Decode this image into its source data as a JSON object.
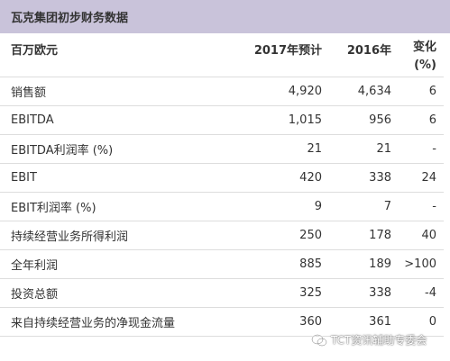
{
  "title": "瓦克集团初步财务数据",
  "table": {
    "headers": [
      "百万欧元",
      "2017年预计",
      "2016年",
      "变化",
      "(%)"
    ],
    "rows": [
      {
        "label": "销售额",
        "v2017": "4,920",
        "v2016": "4,634",
        "change": "6"
      },
      {
        "label": "EBITDA",
        "v2017": "1,015",
        "v2016": "956",
        "change": "6"
      },
      {
        "label": "EBITDA利润率 (%)",
        "v2017": "21",
        "v2016": "21",
        "change": "-"
      },
      {
        "label": "EBIT",
        "v2017": "420",
        "v2016": "338",
        "change": "24"
      },
      {
        "label": "EBIT利润率 (%)",
        "v2017": "9",
        "v2016": "7",
        "change": "-"
      },
      {
        "label": "持续经营业务所得利润",
        "v2017": "250",
        "v2016": "178",
        "change": "40"
      },
      {
        "label": "全年利润",
        "v2017": "885",
        "v2016": "189",
        "change": ">100"
      },
      {
        "label": "投资总额",
        "v2017": "325",
        "v2016": "338",
        "change": "-4"
      },
      {
        "label": "来自持续经营业务的净现金流量",
        "v2017": "360",
        "v2016": "361",
        "change": "0"
      }
    ]
  },
  "watermark": {
    "text": "TCT资讯辅助专委会",
    "icon": "wechat-icon"
  },
  "colors": {
    "title_bg": "#c9c3da",
    "rule": "#dddddd"
  }
}
